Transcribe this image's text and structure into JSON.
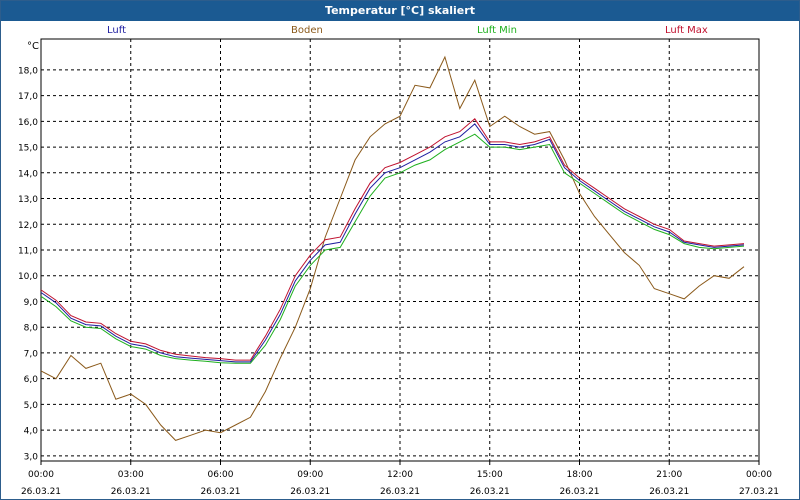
{
  "window": {
    "title": "Temperatur [°C] skaliert"
  },
  "legend": [
    {
      "name": "Luft",
      "color": "#1f1fa0"
    },
    {
      "name": "Boden",
      "color": "#8b5a1b"
    },
    {
      "name": "Luft Min",
      "color": "#1fb01f"
    },
    {
      "name": "Luft Max",
      "color": "#c0122f"
    }
  ],
  "chart_data": {
    "type": "line",
    "title": "Temperatur [°C] skaliert",
    "ylabel": "°C",
    "ylim": [
      2.8,
      19.2
    ],
    "xlim": [
      0,
      24
    ],
    "grid": true,
    "yticks": [
      "3,0",
      "4,0",
      "5,0",
      "6,0",
      "7,0",
      "8,0",
      "9,0",
      "10,0",
      "11,0",
      "12,0",
      "13,0",
      "14,0",
      "15,0",
      "16,0",
      "17,0",
      "18,0"
    ],
    "xticks": [
      {
        "time": "00:00",
        "date": "26.03.21"
      },
      {
        "time": "03:00",
        "date": "26.03.21"
      },
      {
        "time": "06:00",
        "date": "26.03.21"
      },
      {
        "time": "09:00",
        "date": "26.03.21"
      },
      {
        "time": "12:00",
        "date": "26.03.21"
      },
      {
        "time": "15:00",
        "date": "26.03.21"
      },
      {
        "time": "18:00",
        "date": "26.03.21"
      },
      {
        "time": "21:00",
        "date": "26.03.21"
      },
      {
        "time": "00:00",
        "date": "27.03.21"
      }
    ],
    "x": [
      0,
      0.5,
      1,
      1.5,
      2,
      2.5,
      3,
      3.5,
      4,
      4.5,
      5,
      5.5,
      6,
      6.5,
      7,
      7.5,
      8,
      8.5,
      9,
      9.5,
      10,
      10.5,
      11,
      11.5,
      12,
      12.5,
      13,
      13.5,
      14,
      14.5,
      15,
      15.5,
      16,
      16.5,
      17,
      17.5,
      18,
      18.5,
      19,
      19.5,
      20,
      20.5,
      21,
      21.5,
      22,
      22.5,
      23,
      23.5
    ],
    "series": [
      {
        "name": "Luft",
        "color": "#1f1fa0",
        "values": [
          9.35,
          8.95,
          8.35,
          8.1,
          8.05,
          7.65,
          7.35,
          7.25,
          7.0,
          6.85,
          6.8,
          6.75,
          6.7,
          6.65,
          6.65,
          7.5,
          8.5,
          9.8,
          10.6,
          11.2,
          11.3,
          12.4,
          13.4,
          14.0,
          14.2,
          14.5,
          14.8,
          15.2,
          15.4,
          15.9,
          15.1,
          15.1,
          15.0,
          15.1,
          15.3,
          14.2,
          13.7,
          13.3,
          12.9,
          12.5,
          12.2,
          11.9,
          11.7,
          11.3,
          11.2,
          11.1,
          11.15,
          11.2
        ]
      },
      {
        "name": "Boden",
        "color": "#8b5a1b",
        "values": [
          6.3,
          6.0,
          6.9,
          6.4,
          6.6,
          5.2,
          5.4,
          5.0,
          4.2,
          3.6,
          3.8,
          4.0,
          3.9,
          4.2,
          4.5,
          5.5,
          6.8,
          8.0,
          9.5,
          11.5,
          13.0,
          14.5,
          15.4,
          15.9,
          16.2,
          17.4,
          17.3,
          18.5,
          16.5,
          17.6,
          15.8,
          16.2,
          15.8,
          15.5,
          15.6,
          14.5,
          13.2,
          12.3,
          11.6,
          10.9,
          10.4,
          9.5,
          9.3,
          9.1,
          9.6,
          10.0,
          9.9,
          10.35
        ]
      },
      {
        "name": "Luft Min",
        "color": "#1fb01f",
        "values": [
          9.2,
          8.8,
          8.25,
          8.0,
          7.95,
          7.55,
          7.25,
          7.15,
          6.9,
          6.78,
          6.72,
          6.68,
          6.62,
          6.6,
          6.6,
          7.3,
          8.3,
          9.6,
          10.4,
          11.0,
          11.1,
          12.1,
          13.1,
          13.8,
          14.0,
          14.3,
          14.5,
          14.9,
          15.2,
          15.5,
          15.0,
          15.0,
          14.9,
          15.0,
          15.1,
          14.0,
          13.6,
          13.2,
          12.8,
          12.4,
          12.1,
          11.8,
          11.6,
          11.25,
          11.1,
          11.05,
          11.1,
          11.15
        ]
      },
      {
        "name": "Luft Max",
        "color": "#c0122f",
        "values": [
          9.45,
          9.05,
          8.45,
          8.2,
          8.15,
          7.75,
          7.45,
          7.35,
          7.1,
          6.95,
          6.88,
          6.82,
          6.78,
          6.72,
          6.72,
          7.65,
          8.7,
          10.0,
          10.8,
          11.4,
          11.5,
          12.6,
          13.6,
          14.2,
          14.4,
          14.7,
          15.0,
          15.4,
          15.6,
          16.1,
          15.2,
          15.2,
          15.1,
          15.2,
          15.4,
          14.3,
          13.8,
          13.4,
          13.0,
          12.6,
          12.3,
          12.0,
          11.8,
          11.35,
          11.25,
          11.15,
          11.2,
          11.25
        ]
      }
    ]
  }
}
